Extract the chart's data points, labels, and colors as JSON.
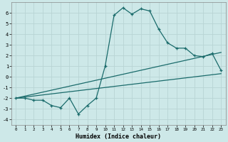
{
  "title": "",
  "xlabel": "Humidex (Indice chaleur)",
  "ylabel": "",
  "bg_color": "#cde8e8",
  "line_color": "#1a6b6b",
  "grid_color": "#b8d4d4",
  "xlim": [
    -0.5,
    23.5
  ],
  "ylim": [
    -4.5,
    7.0
  ],
  "yticks": [
    -4,
    -3,
    -2,
    -1,
    0,
    1,
    2,
    3,
    4,
    5,
    6
  ],
  "xticks": [
    0,
    1,
    2,
    3,
    4,
    5,
    6,
    7,
    8,
    9,
    10,
    11,
    12,
    13,
    14,
    15,
    16,
    17,
    18,
    19,
    20,
    21,
    22,
    23
  ],
  "line1_x": [
    0,
    1,
    2,
    3,
    4,
    5,
    6,
    7,
    8,
    9,
    10,
    11,
    12,
    13,
    14,
    15,
    16,
    17,
    18,
    19,
    20,
    21,
    22,
    23
  ],
  "line1_y": [
    -2.0,
    -2.0,
    -2.2,
    -2.2,
    -2.7,
    -2.9,
    -2.0,
    -3.5,
    -2.7,
    -2.0,
    1.0,
    5.8,
    6.5,
    5.9,
    6.4,
    6.2,
    4.5,
    3.2,
    2.7,
    2.7,
    2.0,
    1.9,
    2.2,
    0.6
  ],
  "line2_x": [
    0,
    23
  ],
  "line2_y": [
    -2.0,
    0.3
  ],
  "line3_x": [
    0,
    23
  ],
  "line3_y": [
    -2.0,
    2.3
  ]
}
